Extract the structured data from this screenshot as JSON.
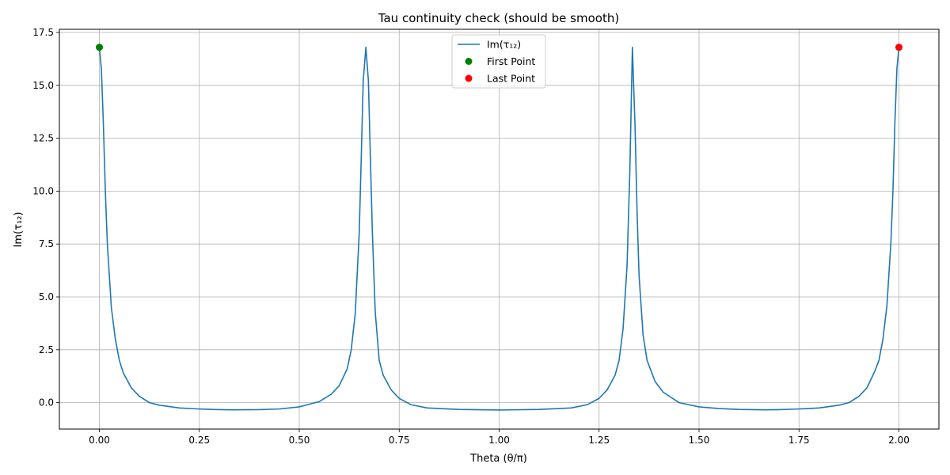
{
  "chart_data": {
    "type": "line",
    "title": "Tau continuity check (should be smooth)",
    "xlabel": "Theta (θ/π)",
    "ylabel": "Im(τ₁₂)",
    "xlim": [
      -0.1,
      2.1
    ],
    "ylim": [
      -1.25,
      17.65
    ],
    "x_ticks": [
      0.0,
      0.25,
      0.5,
      0.75,
      1.0,
      1.25,
      1.5,
      1.75,
      2.0
    ],
    "x_tick_labels": [
      "0.00",
      "0.25",
      "0.50",
      "0.75",
      "1.00",
      "1.25",
      "1.50",
      "1.75",
      "2.00"
    ],
    "y_ticks": [
      0.0,
      2.5,
      5.0,
      7.5,
      10.0,
      12.5,
      15.0,
      17.5
    ],
    "y_tick_labels": [
      "0.0",
      "2.5",
      "5.0",
      "7.5",
      "10.0",
      "12.5",
      "15.0",
      "17.5"
    ],
    "grid": true,
    "legend": {
      "placement": "top-center",
      "entries": [
        {
          "label": "Im(τ₁₂)",
          "kind": "line",
          "color": "#1f77b4"
        },
        {
          "label": "First Point",
          "kind": "marker",
          "color": "#008000"
        },
        {
          "label": "Last Point",
          "kind": "marker",
          "color": "#ff0000"
        }
      ]
    },
    "series": [
      {
        "name": "Im(τ₁₂)",
        "color": "#1f77b4",
        "x": [
          0.0,
          0.005,
          0.01,
          0.015,
          0.02,
          0.03,
          0.04,
          0.05,
          0.06,
          0.08,
          0.1,
          0.125,
          0.15,
          0.2,
          0.25,
          0.3,
          0.333,
          0.4,
          0.45,
          0.5,
          0.55,
          0.58,
          0.6,
          0.62,
          0.63,
          0.64,
          0.65,
          0.655,
          0.66,
          0.6667,
          0.673,
          0.678,
          0.683,
          0.69,
          0.7,
          0.71,
          0.73,
          0.75,
          0.78,
          0.82,
          0.9,
          1.0,
          1.1,
          1.18,
          1.22,
          1.25,
          1.27,
          1.29,
          1.3,
          1.31,
          1.32,
          1.327,
          1.3333,
          1.34,
          1.345,
          1.35,
          1.36,
          1.37,
          1.39,
          1.41,
          1.45,
          1.5,
          1.55,
          1.6,
          1.667,
          1.7,
          1.75,
          1.8,
          1.85,
          1.875,
          1.9,
          1.92,
          1.94,
          1.95,
          1.96,
          1.97,
          1.98,
          1.985,
          1.99,
          1.995,
          2.0
        ],
        "y": [
          16.8,
          15.8,
          13.2,
          10.0,
          7.5,
          4.5,
          3.0,
          2.0,
          1.4,
          0.7,
          0.3,
          0.0,
          -0.12,
          -0.25,
          -0.3,
          -0.33,
          -0.34,
          -0.33,
          -0.3,
          -0.2,
          0.05,
          0.4,
          0.8,
          1.6,
          2.5,
          4.2,
          8.0,
          11.5,
          15.2,
          16.8,
          15.2,
          11.5,
          8.0,
          4.3,
          2.0,
          1.3,
          0.6,
          0.2,
          -0.1,
          -0.25,
          -0.32,
          -0.35,
          -0.32,
          -0.25,
          -0.1,
          0.2,
          0.6,
          1.3,
          2.0,
          3.5,
          6.5,
          11.0,
          16.8,
          13.0,
          9.0,
          6.0,
          3.2,
          2.0,
          1.0,
          0.5,
          0.0,
          -0.2,
          -0.28,
          -0.32,
          -0.34,
          -0.33,
          -0.3,
          -0.25,
          -0.12,
          0.0,
          0.3,
          0.7,
          1.5,
          2.0,
          3.0,
          4.6,
          7.6,
          10.0,
          13.3,
          15.8,
          16.8
        ]
      }
    ],
    "points": [
      {
        "name": "First Point",
        "x": 0.0,
        "y": 16.8,
        "color": "#008000"
      },
      {
        "name": "Last Point",
        "x": 2.0,
        "y": 16.8,
        "color": "#ff0000"
      }
    ]
  }
}
